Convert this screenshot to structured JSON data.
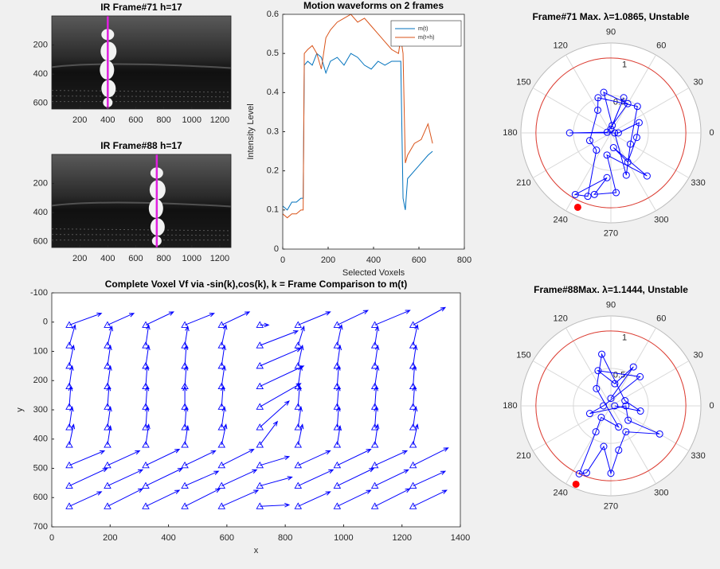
{
  "chart_data": [
    {
      "type": "image",
      "title": "IR Frame#71 h=17",
      "xlim": [
        0,
        1280
      ],
      "ylim": [
        0,
        640
      ],
      "y_reversed": true,
      "xticks": [
        200,
        400,
        600,
        800,
        1000,
        1200
      ],
      "yticks": [
        200,
        400,
        600
      ],
      "vline_x": 400,
      "vline_color": "#e020e0"
    },
    {
      "type": "image",
      "title": "IR Frame#88 h=17",
      "xlim": [
        0,
        1280
      ],
      "ylim": [
        0,
        640
      ],
      "y_reversed": true,
      "xticks": [
        200,
        400,
        600,
        800,
        1000,
        1200
      ],
      "yticks": [
        200,
        400,
        600
      ],
      "vline_x": 750,
      "vline_color": "#e020e0"
    },
    {
      "type": "line",
      "title": "Motion waveforms on 2 frames",
      "xlabel": "Selected Voxels",
      "ylabel": "Intensity Level",
      "xlim": [
        0,
        800
      ],
      "ylim": [
        0,
        0.6
      ],
      "xticks": [
        0,
        200,
        400,
        600,
        800
      ],
      "yticks": [
        0,
        0.1,
        0.2,
        0.3,
        0.4,
        0.5,
        0.6
      ],
      "legend": "upper right",
      "x": [
        0,
        20,
        40,
        60,
        80,
        90,
        95,
        110,
        130,
        150,
        170,
        190,
        210,
        240,
        270,
        300,
        330,
        360,
        390,
        420,
        450,
        480,
        510,
        520,
        530,
        540,
        550,
        580,
        610,
        640,
        660
      ],
      "series": [
        {
          "name": "m(t)",
          "color": "#0072bd",
          "values": [
            0.11,
            0.1,
            0.12,
            0.12,
            0.13,
            0.13,
            0.47,
            0.48,
            0.47,
            0.5,
            0.49,
            0.45,
            0.48,
            0.49,
            0.47,
            0.5,
            0.49,
            0.47,
            0.46,
            0.48,
            0.47,
            0.48,
            0.48,
            0.48,
            0.13,
            0.1,
            0.18,
            0.2,
            0.22,
            0.24,
            0.25
          ]
        },
        {
          "name": "m(t+h)",
          "color": "#d95319",
          "values": [
            0.09,
            0.08,
            0.09,
            0.09,
            0.1,
            0.1,
            0.5,
            0.51,
            0.52,
            0.5,
            0.46,
            0.54,
            0.56,
            0.58,
            0.59,
            0.6,
            0.58,
            0.59,
            0.57,
            0.55,
            0.53,
            0.51,
            0.5,
            0.54,
            0.5,
            0.22,
            0.24,
            0.27,
            0.28,
            0.32,
            0.27
          ]
        }
      ]
    },
    {
      "type": "quiver",
      "title": "Complete Voxel Vf via -sin(k),cos(k), k = Frame Comparison to m(t)",
      "xlabel": "x",
      "ylabel": "y",
      "xlim": [
        0,
        1400
      ],
      "ylim": [
        -100,
        700
      ],
      "y_reversed": true,
      "xticks": [
        0,
        200,
        400,
        600,
        800,
        1000,
        1200,
        1400
      ],
      "yticks": [
        -100,
        0,
        100,
        200,
        300,
        400,
        500,
        600,
        700
      ],
      "color": "#0000ff",
      "x": [
        60,
        191,
        322,
        456,
        582,
        713,
        844,
        978,
        1107,
        1238
      ],
      "y": [
        10,
        80,
        150,
        220,
        290,
        360,
        420,
        490,
        560,
        630
      ],
      "u": [
        [
          110,
          90,
          95,
          100,
          95,
          30,
          110,
          105,
          120,
          110
        ],
        [
          20,
          15,
          10,
          10,
          15,
          130,
          20,
          15,
          10,
          15
        ],
        [
          15,
          10,
          10,
          5,
          10,
          140,
          15,
          10,
          10,
          10
        ],
        [
          10,
          10,
          5,
          5,
          10,
          150,
          10,
          5,
          10,
          5
        ],
        [
          5,
          5,
          5,
          0,
          5,
          140,
          5,
          5,
          5,
          5
        ],
        [
          10,
          10,
          5,
          5,
          10,
          100,
          10,
          5,
          5,
          10
        ],
        [
          15,
          10,
          10,
          10,
          15,
          60,
          15,
          10,
          10,
          15
        ],
        [
          120,
          110,
          115,
          105,
          110,
          100,
          110,
          115,
          110,
          120
        ],
        [
          130,
          120,
          125,
          115,
          120,
          110,
          120,
          125,
          115,
          110
        ],
        [
          110,
          120,
          115,
          120,
          125,
          100,
          110,
          115,
          120,
          115
        ]
      ],
      "v": [
        [
          -40,
          -40,
          -45,
          -40,
          -45,
          0,
          -45,
          -50,
          -50,
          -60
        ],
        [
          -70,
          -65,
          -70,
          -65,
          -70,
          -50,
          -65,
          -70,
          -65,
          -70
        ],
        [
          -70,
          -70,
          -70,
          -70,
          -70,
          -60,
          -70,
          -70,
          -70,
          -70
        ],
        [
          -70,
          -70,
          -70,
          -70,
          -70,
          -70,
          -70,
          -70,
          -70,
          -70
        ],
        [
          -70,
          -70,
          -70,
          -70,
          -70,
          -80,
          -70,
          -70,
          -70,
          -70
        ],
        [
          -70,
          -70,
          -70,
          -70,
          -70,
          -90,
          -70,
          -70,
          -70,
          -70
        ],
        [
          -70,
          -65,
          -70,
          -65,
          -70,
          -80,
          -70,
          -65,
          -70,
          -70
        ],
        [
          -50,
          -50,
          -55,
          -50,
          -55,
          -30,
          -50,
          -55,
          -50,
          -60
        ],
        [
          -60,
          -55,
          -60,
          -50,
          -55,
          -30,
          -55,
          -60,
          -55,
          -50
        ],
        [
          -50,
          -60,
          -55,
          -60,
          -55,
          -5,
          -50,
          -55,
          -60,
          -55
        ]
      ]
    },
    {
      "type": "polar",
      "title": "Frame#71 Max. λ=1.0865, Unstable",
      "rlim": [
        0,
        1.2
      ],
      "rticks": [
        0.5,
        1
      ],
      "thetaticks": [
        0,
        30,
        60,
        90,
        120,
        150,
        180,
        210,
        240,
        270,
        300,
        330
      ],
      "series": [
        {
          "color": "#0000ff",
          "theta": [
            90,
            70,
            80,
            100,
            60,
            170,
            180,
            0,
            20,
            350,
            300,
            280,
            310,
            260,
            275,
            255,
            265,
            240,
            250,
            230,
            200,
            120,
            110,
            45,
            330,
            290,
            0
          ],
          "r": [
            0.05,
            0.5,
            0.1,
            0.55,
            0.45,
            0.05,
            0.55,
            0.1,
            0.4,
            0.35,
            0.45,
            0.2,
            0.75,
            0.3,
            0.8,
            0.85,
            0.6,
            0.95,
            0.9,
            0.3,
            0.3,
            0.35,
            0.5,
            0.5,
            0.3,
            0.6,
            0.05
          ]
        }
      ],
      "highlight": {
        "theta": 246,
        "r": 1.0865,
        "color": "#ff0000"
      },
      "reference_circle": {
        "r": 1,
        "color": "#e03c31"
      }
    },
    {
      "type": "polar",
      "title": "Frame#88Max. λ=1.1444, Unstable",
      "rlim": [
        0,
        1.2
      ],
      "rticks": [
        0.5,
        1
      ],
      "thetaticks": [
        0,
        30,
        60,
        90,
        120,
        150,
        180,
        210,
        240,
        270,
        300,
        330
      ],
      "series": [
        {
          "color": "#0000ff",
          "theta": [
            90,
            60,
            80,
            110,
            45,
            180,
            200,
            0,
            320,
            330,
            300,
            280,
            270,
            260,
            250,
            245,
            240,
            230,
            290,
            130,
            100,
            20,
            350,
            0
          ],
          "r": [
            0.1,
            0.6,
            0.3,
            0.5,
            0.55,
            0.1,
            0.3,
            0.2,
            0.3,
            0.75,
            0.4,
            0.6,
            0.9,
            0.55,
            0.95,
            1.0,
            0.4,
            0.2,
            0.3,
            0.3,
            0.7,
            0.2,
            0.4,
            0.05
          ]
        }
      ],
      "highlight": {
        "theta": 246,
        "r": 1.1444,
        "color": "#ff0000"
      },
      "reference_circle": {
        "r": 1,
        "color": "#e03c31"
      }
    }
  ]
}
